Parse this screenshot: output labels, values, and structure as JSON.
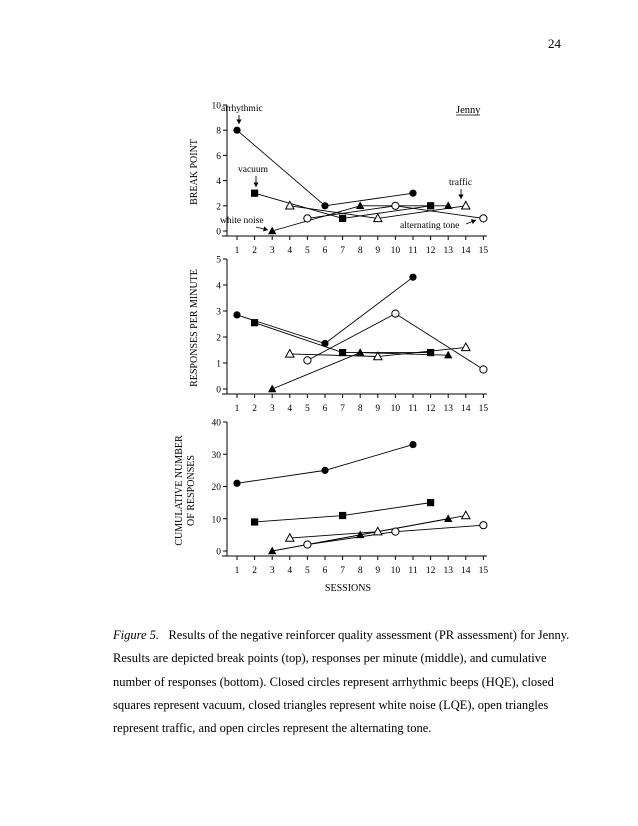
{
  "page_number": "24",
  "caption": {
    "figure_label": "Figure 5.",
    "text": "Results of the negative reinforcer quality assessment (PR assessment) for Jenny.  Results are depicted break points (top), responses per minute (middle), and cumulative number of responses (bottom).  Closed circles represent arrhythmic beeps (HQE), closed squares represent vacuum, closed triangles represent white noise (LQE), open triangles represent traffic, and open circles represent the alternating tone."
  },
  "chart_data": [
    {
      "type": "line",
      "panel": "top",
      "title": "Jenny",
      "ylabel": "BREAK POINT",
      "xlabel": "",
      "ylim": [
        0,
        10
      ],
      "yticks": [
        0,
        2,
        4,
        6,
        8,
        10
      ],
      "xticks": [
        1,
        2,
        3,
        4,
        5,
        6,
        7,
        8,
        9,
        10,
        11,
        12,
        13,
        14,
        15
      ],
      "grid": false,
      "annotations": [
        {
          "text": "arrhythmic",
          "series": "arrhythmic beeps (HQE)"
        },
        {
          "text": "vacuum",
          "series": "vacuum"
        },
        {
          "text": "white noise",
          "series": "white noise (LQE)"
        },
        {
          "text": "traffic",
          "series": "traffic"
        },
        {
          "text": "alternating tone",
          "series": "alternating tone"
        }
      ],
      "series": [
        {
          "name": "arrhythmic beeps (HQE)",
          "marker": "filled-circle",
          "points": [
            [
              1,
              8
            ],
            [
              6,
              2
            ],
            [
              11,
              3
            ]
          ]
        },
        {
          "name": "vacuum",
          "marker": "filled-square",
          "points": [
            [
              2,
              3
            ],
            [
              7,
              1
            ],
            [
              12,
              2
            ]
          ]
        },
        {
          "name": "white noise (LQE)",
          "marker": "filled-triangle",
          "points": [
            [
              3,
              0
            ],
            [
              8,
              2
            ],
            [
              13,
              2
            ]
          ]
        },
        {
          "name": "traffic",
          "marker": "open-triangle",
          "points": [
            [
              4,
              2
            ],
            [
              9,
              1
            ],
            [
              14,
              2
            ]
          ]
        },
        {
          "name": "alternating tone",
          "marker": "open-circle",
          "points": [
            [
              5,
              1
            ],
            [
              10,
              2
            ],
            [
              15,
              1
            ]
          ]
        }
      ]
    },
    {
      "type": "line",
      "panel": "middle",
      "ylabel": "RESPONSES PER MINUTE",
      "xlabel": "",
      "ylim": [
        0,
        5
      ],
      "yticks": [
        0,
        1,
        2,
        3,
        4,
        5
      ],
      "xticks": [
        1,
        2,
        3,
        4,
        5,
        6,
        7,
        8,
        9,
        10,
        11,
        12,
        13,
        14,
        15
      ],
      "grid": false,
      "series": [
        {
          "name": "arrhythmic beeps (HQE)",
          "marker": "filled-circle",
          "points": [
            [
              1,
              2.85
            ],
            [
              6,
              1.75
            ],
            [
              11,
              4.3
            ]
          ]
        },
        {
          "name": "vacuum",
          "marker": "filled-square",
          "points": [
            [
              2,
              2.55
            ],
            [
              7,
              1.4
            ],
            [
              12,
              1.4
            ]
          ]
        },
        {
          "name": "white noise (LQE)",
          "marker": "filled-triangle",
          "points": [
            [
              3,
              0
            ],
            [
              8,
              1.4
            ],
            [
              13,
              1.3
            ]
          ]
        },
        {
          "name": "traffic",
          "marker": "open-triangle",
          "points": [
            [
              4,
              1.35
            ],
            [
              9,
              1.25
            ],
            [
              14,
              1.6
            ]
          ]
        },
        {
          "name": "alternating tone",
          "marker": "open-circle",
          "points": [
            [
              5,
              1.1
            ],
            [
              10,
              2.9
            ],
            [
              15,
              0.75
            ]
          ]
        }
      ]
    },
    {
      "type": "line",
      "panel": "bottom",
      "ylabel": "CUMULATIVE NUMBER OF RESPONSES",
      "ylabel_lines": [
        "CUMULATIVE NUMBER",
        "OF RESPONSES"
      ],
      "xlabel": "SESSIONS",
      "ylim": [
        0,
        40
      ],
      "yticks": [
        0,
        10,
        20,
        30,
        40
      ],
      "xticks": [
        1,
        2,
        3,
        4,
        5,
        6,
        7,
        8,
        9,
        10,
        11,
        12,
        13,
        14,
        15
      ],
      "grid": false,
      "series": [
        {
          "name": "arrhythmic beeps (HQE)",
          "marker": "filled-circle",
          "points": [
            [
              1,
              21
            ],
            [
              6,
              25
            ],
            [
              11,
              33
            ]
          ]
        },
        {
          "name": "vacuum",
          "marker": "filled-square",
          "points": [
            [
              2,
              9
            ],
            [
              7,
              11
            ],
            [
              12,
              15
            ]
          ]
        },
        {
          "name": "white noise (LQE)",
          "marker": "filled-triangle",
          "points": [
            [
              3,
              0
            ],
            [
              8,
              5
            ],
            [
              13,
              10
            ]
          ]
        },
        {
          "name": "traffic",
          "marker": "open-triangle",
          "points": [
            [
              4,
              4
            ],
            [
              9,
              6
            ],
            [
              14,
              11
            ]
          ]
        },
        {
          "name": "alternating tone",
          "marker": "open-circle",
          "points": [
            [
              5,
              2
            ],
            [
              10,
              6
            ],
            [
              15,
              8
            ]
          ]
        }
      ]
    }
  ]
}
